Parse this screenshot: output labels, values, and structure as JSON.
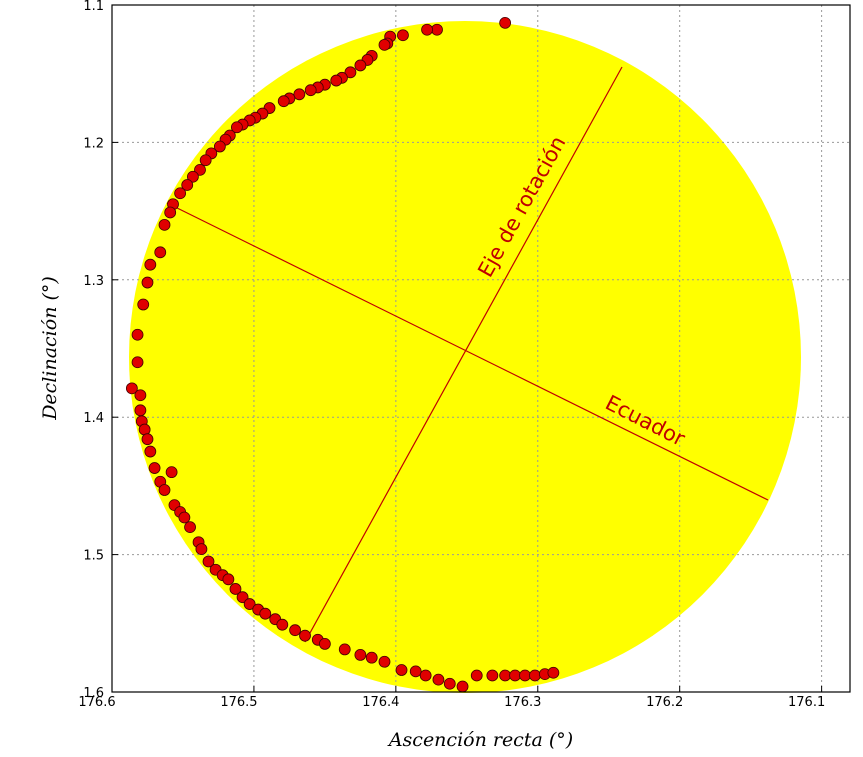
{
  "chart_data": {
    "type": "scatter",
    "x_label": "Ascención recta (°)",
    "y_label": "Declinación (°)",
    "annotations": [
      "Eje de rotación",
      "Ecuador"
    ],
    "xlim": [
      176.6,
      176.08
    ],
    "xticks": [
      176.6,
      176.5,
      176.4,
      176.3,
      176.2,
      176.1
    ],
    "ylim": [
      1.6,
      1.1
    ],
    "yticks": [
      1.1,
      1.2,
      1.3,
      1.4,
      1.5,
      1.6
    ],
    "grid": true,
    "color": "#e00000",
    "x": [
      176.323,
      176.371,
      176.378,
      176.395,
      176.404,
      176.406,
      176.408,
      176.417,
      176.42,
      176.425,
      176.432,
      176.438,
      176.442,
      176.45,
      176.455,
      176.46,
      176.468,
      176.475,
      176.479,
      176.489,
      176.494,
      176.499,
      176.503,
      176.508,
      176.512,
      176.517,
      176.52,
      176.524,
      176.53,
      176.534,
      176.538,
      176.543,
      176.547,
      176.552,
      176.557,
      176.559,
      176.563,
      176.566,
      176.573,
      176.575,
      176.578,
      176.582,
      176.582,
      176.586,
      176.58,
      176.58,
      176.579,
      176.577,
      176.575,
      176.573,
      176.57,
      176.566,
      176.563,
      176.558,
      176.556,
      176.552,
      176.549,
      176.545,
      176.539,
      176.537,
      176.532,
      176.527,
      176.522,
      176.518,
      176.513,
      176.508,
      176.503,
      176.497,
      176.492,
      176.485,
      176.48,
      176.471,
      176.464,
      176.455,
      176.45,
      176.436,
      176.425,
      176.417,
      176.408,
      176.396,
      176.386,
      176.379,
      176.37,
      176.362,
      176.353,
      176.343,
      176.332,
      176.323,
      176.316,
      176.309,
      176.302,
      176.295,
      176.289
    ],
    "values": [
      1.113,
      1.118,
      1.118,
      1.122,
      1.123,
      1.128,
      1.129,
      1.137,
      1.14,
      1.144,
      1.149,
      1.153,
      1.155,
      1.158,
      1.16,
      1.162,
      1.165,
      1.168,
      1.17,
      1.175,
      1.179,
      1.182,
      1.184,
      1.187,
      1.189,
      1.195,
      1.198,
      1.203,
      1.208,
      1.213,
      1.22,
      1.225,
      1.231,
      1.237,
      1.245,
      1.251,
      1.26,
      1.28,
      1.289,
      1.302,
      1.318,
      1.34,
      1.36,
      1.379,
      1.384,
      1.395,
      1.403,
      1.409,
      1.416,
      1.425,
      1.437,
      1.447,
      1.453,
      1.44,
      1.464,
      1.469,
      1.473,
      1.48,
      1.491,
      1.496,
      1.505,
      1.511,
      1.515,
      1.518,
      1.525,
      1.531,
      1.536,
      1.54,
      1.543,
      1.547,
      1.551,
      1.555,
      1.559,
      1.562,
      1.565,
      1.569,
      1.573,
      1.575,
      1.578,
      1.584,
      1.585,
      1.588,
      1.591,
      1.594,
      1.596,
      1.588,
      1.588,
      1.588,
      1.588,
      1.588,
      1.588,
      1.587,
      1.586
    ]
  }
}
